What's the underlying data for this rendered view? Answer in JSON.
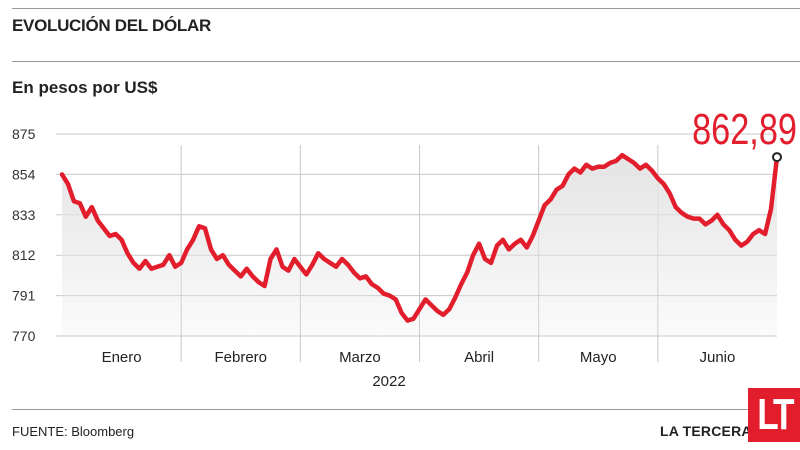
{
  "header": {
    "title": "EVOLUCIÓN DEL DÓLAR",
    "subtitle": "En pesos por US$"
  },
  "footer": {
    "source": "FUENTE: Bloomberg",
    "brand": "LA TERCERA",
    "logo": "LT"
  },
  "colors": {
    "line": "#e21e2d",
    "area": "#e4e4e4",
    "grid": "#c8c8c8",
    "annotation": "#e21e2d"
  },
  "chart_data": {
    "type": "line",
    "title": "EVOLUCIÓN DEL DÓLAR",
    "ylabel": "En pesos por US$",
    "xlabel": "2022",
    "ylim": [
      770,
      875
    ],
    "yticks": [
      875,
      854,
      833,
      812,
      791,
      770
    ],
    "month_labels": [
      "Enero",
      "Febrero",
      "Marzo",
      "Abril",
      "Mayo",
      "Junio"
    ],
    "grid": "vertical",
    "annotation": {
      "label": "862,89",
      "value": 862.89
    },
    "series": [
      {
        "values": [
          854,
          849,
          840,
          839,
          832,
          837,
          830,
          826,
          822,
          823,
          820,
          813,
          808,
          805,
          809,
          805,
          806,
          807,
          812,
          806,
          808,
          815,
          820,
          827,
          826,
          815,
          810,
          812,
          807,
          804,
          801,
          805,
          801,
          798,
          796,
          810,
          815,
          806,
          804,
          810,
          806,
          802,
          807,
          813,
          810,
          808,
          806,
          810,
          807,
          803,
          800,
          801,
          797,
          795,
          792,
          791,
          789,
          782,
          778,
          779,
          784,
          789,
          786,
          783,
          781,
          784,
          790,
          797,
          803,
          812,
          818,
          810,
          808,
          817,
          820,
          815,
          818,
          820,
          816,
          822,
          830,
          838,
          841,
          846,
          848,
          854,
          857,
          855,
          859,
          857,
          858,
          858,
          860,
          861,
          864,
          862,
          860,
          857,
          859,
          856,
          852,
          849,
          844,
          837,
          834,
          832,
          831,
          831,
          828,
          830,
          833,
          828,
          825,
          820,
          817,
          819,
          823,
          825,
          823,
          836,
          863
        ]
      }
    ]
  }
}
